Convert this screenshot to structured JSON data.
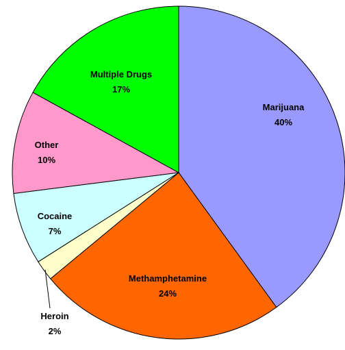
{
  "chart_data": {
    "type": "pie",
    "title": "",
    "start_angle_deg": 0,
    "direction": "clockwise",
    "legend": "none",
    "slices": [
      {
        "label": "Marijuana",
        "percent_label": "40%",
        "value": 40,
        "color": "#9999FF"
      },
      {
        "label": "Methamphetamine",
        "percent_label": "24%",
        "value": 24,
        "color": "#FF6600"
      },
      {
        "label": "Heroin",
        "percent_label": "2%",
        "value": 2,
        "color": "#FFFFCC"
      },
      {
        "label": "Cocaine",
        "percent_label": "7%",
        "value": 7,
        "color": "#CCFFFF"
      },
      {
        "label": "Other",
        "percent_label": "10%",
        "value": 10,
        "color": "#FF99CC"
      },
      {
        "label": "Multiple Drugs",
        "percent_label": "17%",
        "value": 17,
        "color": "#00FF00"
      }
    ]
  }
}
